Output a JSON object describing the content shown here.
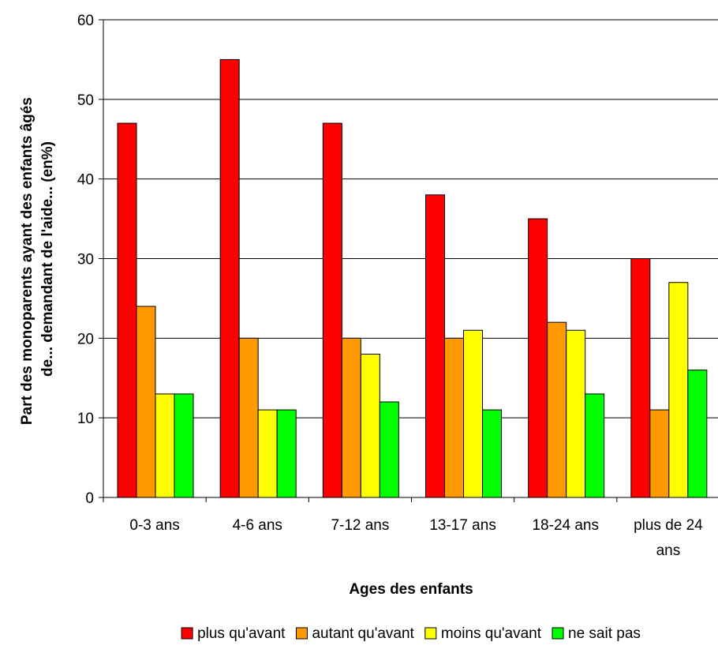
{
  "chart_data": {
    "type": "bar",
    "categories": [
      "0-3 ans",
      "4-6 ans",
      "7-12 ans",
      "13-17 ans",
      "18-24 ans",
      "plus de 24 ans"
    ],
    "category_lines": [
      [
        "0-3 ans"
      ],
      [
        "4-6 ans"
      ],
      [
        "7-12 ans"
      ],
      [
        "13-17 ans"
      ],
      [
        "18-24 ans"
      ],
      [
        "plus de 24",
        "ans"
      ]
    ],
    "series": [
      {
        "name": "plus qu'avant",
        "color": "#ff0000",
        "values": [
          47,
          55,
          47,
          38,
          35,
          30
        ]
      },
      {
        "name": "autant qu'avant",
        "color": "#ff9900",
        "values": [
          24,
          20,
          20,
          20,
          22,
          11
        ]
      },
      {
        "name": "moins qu'avant",
        "color": "#ffff00",
        "values": [
          13,
          11,
          18,
          21,
          21,
          27
        ]
      },
      {
        "name": "ne sait pas",
        "color": "#00ff00",
        "values": [
          13,
          11,
          12,
          11,
          13,
          16
        ]
      }
    ],
    "xlabel": "Ages des enfants",
    "ylabel_lines": [
      "Part des monoparents ayant des enfants âgés",
      "de... demandant de l'aide... (en%)"
    ],
    "ylim": [
      0,
      60
    ],
    "yticks": [
      "0",
      "10",
      "20",
      "30",
      "40",
      "50",
      "60"
    ],
    "grid": true,
    "legend": "bottom"
  }
}
